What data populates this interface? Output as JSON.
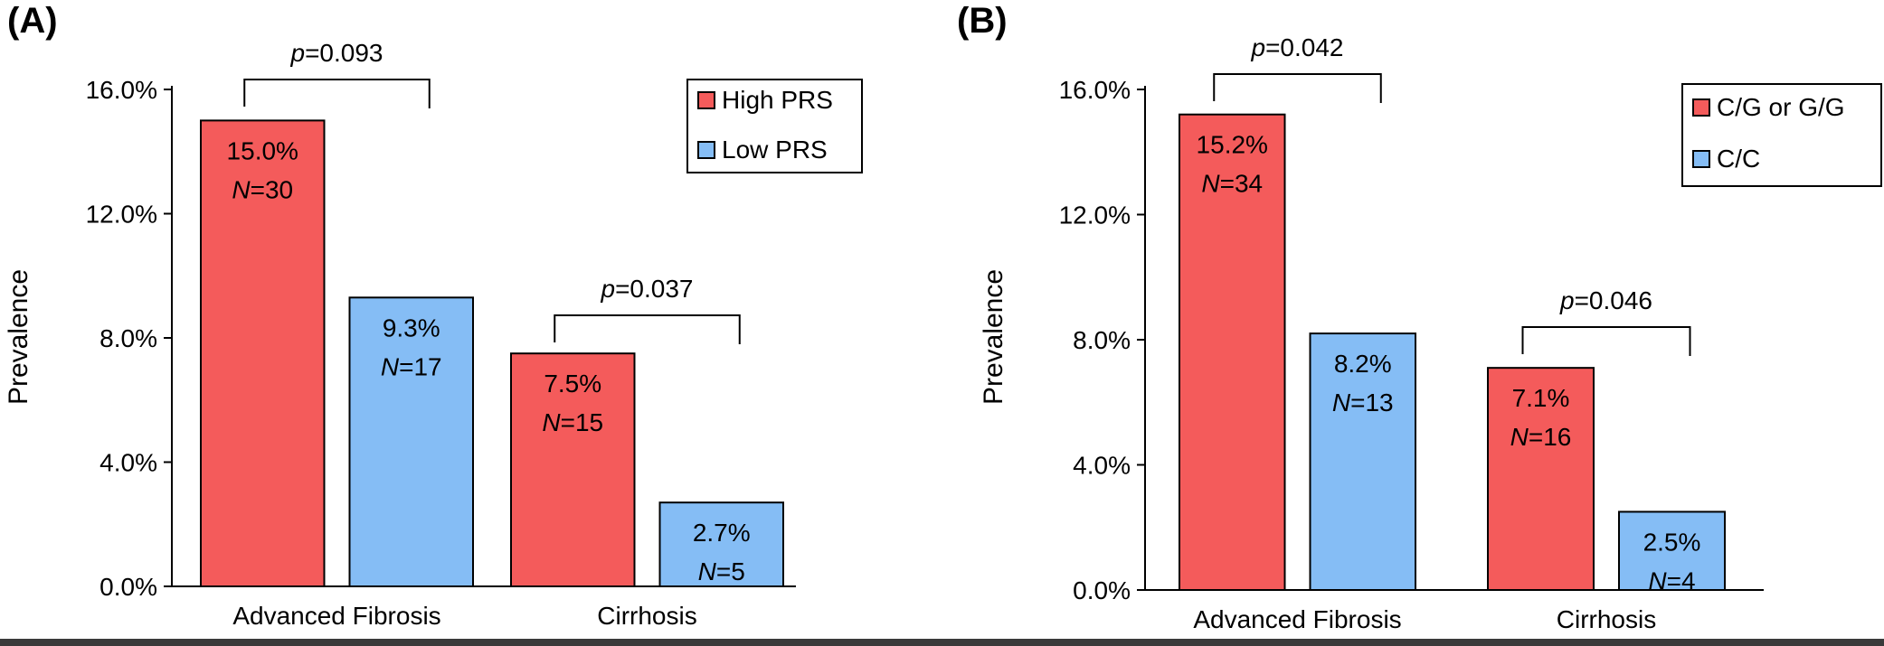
{
  "chart_data": [
    {
      "type": "bar",
      "panel_label": "(A)",
      "title": "",
      "xlabel": "",
      "ylabel": "Prevalence",
      "ylim": [
        0,
        16
      ],
      "yticks": [
        "0.0%",
        "4.0%",
        "8.0%",
        "12.0%",
        "16.0%"
      ],
      "ytick_values": [
        0,
        4,
        8,
        12,
        16
      ],
      "categories": [
        "Advanced Fibrosis",
        "Cirrhosis"
      ],
      "legend_position": "top-right",
      "series": [
        {
          "name": "High PRS",
          "color": "#f45b5b",
          "values": [
            15.0,
            7.5
          ],
          "value_labels": [
            "15.0%",
            "7.5%"
          ],
          "n_labels": [
            "=30",
            "=15"
          ]
        },
        {
          "name": "Low PRS",
          "color": "#85bdf5",
          "values": [
            9.3,
            2.7
          ],
          "value_labels": [
            "9.3%",
            "2.7%"
          ],
          "n_labels": [
            "=17",
            "=5"
          ]
        }
      ],
      "n_prefix": "N",
      "p_prefix": "p",
      "pvalues": [
        "=0.093",
        "=0.037"
      ]
    },
    {
      "type": "bar",
      "panel_label": "(B)",
      "title": "",
      "xlabel": "",
      "ylabel": "Prevalence",
      "ylim": [
        0,
        16
      ],
      "yticks": [
        "0.0%",
        "4.0%",
        "8.0%",
        "12.0%",
        "16.0%"
      ],
      "ytick_values": [
        0,
        4,
        8,
        12,
        16
      ],
      "categories": [
        "Advanced Fibrosis",
        "Cirrhosis"
      ],
      "legend_position": "top-right",
      "series": [
        {
          "name": "C/G or G/G",
          "color": "#f45b5b",
          "values": [
            15.2,
            7.1
          ],
          "value_labels": [
            "15.2%",
            "7.1%"
          ],
          "n_labels": [
            "=34",
            "=16"
          ]
        },
        {
          "name": "C/C",
          "color": "#85bdf5",
          "values": [
            8.2,
            2.5
          ],
          "value_labels": [
            "8.2%",
            "2.5%"
          ],
          "n_labels": [
            "=13",
            "=4"
          ]
        }
      ],
      "n_prefix": "N",
      "p_prefix": "p",
      "pvalues": [
        "=0.042",
        "=0.046"
      ]
    }
  ],
  "colors": {
    "axis": "#000000",
    "bar_stroke": "#000000",
    "strip": "#3a3a3a"
  }
}
